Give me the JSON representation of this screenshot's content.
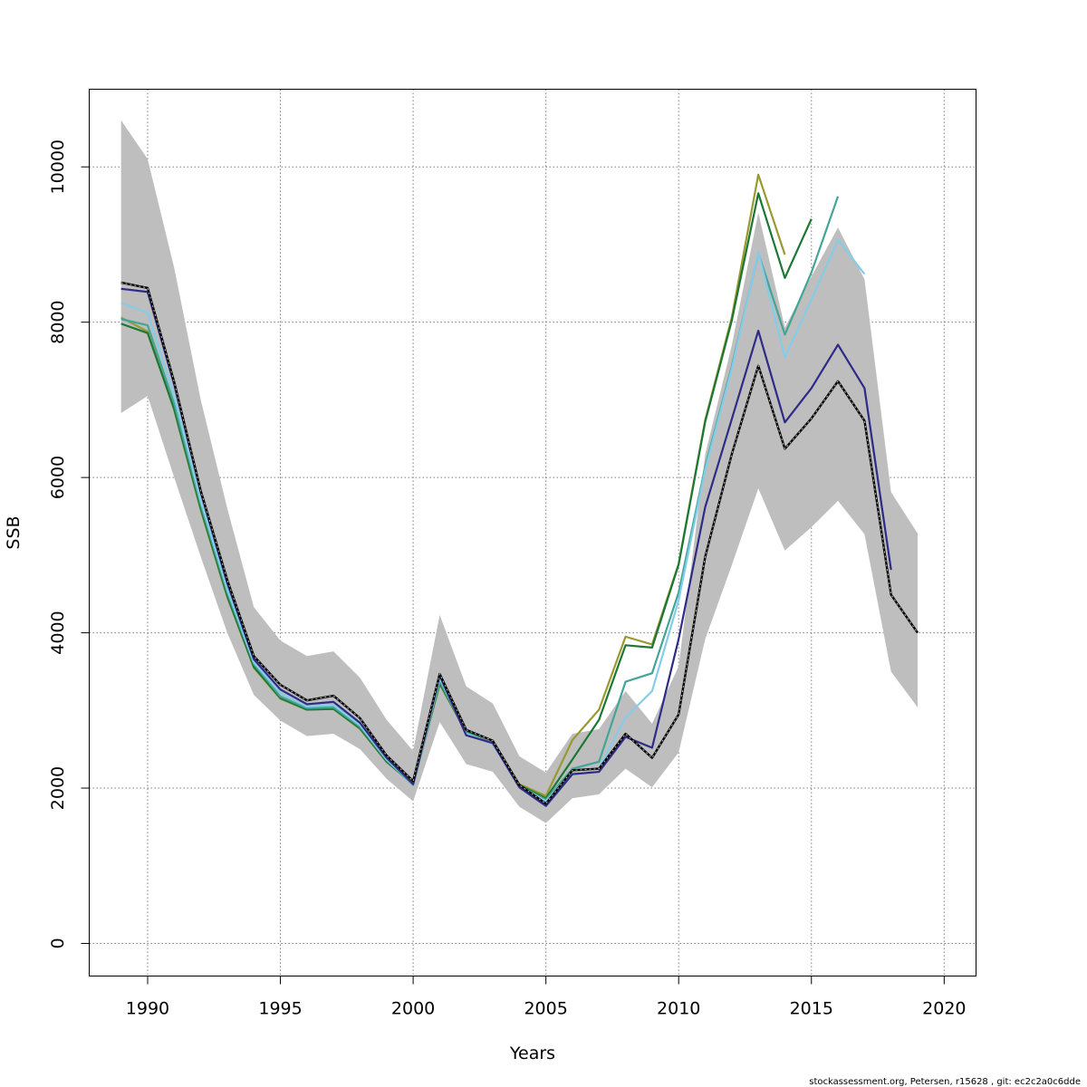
{
  "chart_data": {
    "type": "line",
    "xlabel": "Years",
    "ylabel": "SSB",
    "xlim": [
      1987.8,
      2021.2
    ],
    "ylim": [
      -420,
      11000
    ],
    "x_ticks": [
      1990,
      1995,
      2000,
      2005,
      2010,
      2015,
      2020
    ],
    "y_ticks": [
      0,
      2000,
      4000,
      6000,
      8000,
      10000
    ],
    "x_tick_labels": [
      "1990",
      "1995",
      "2000",
      "2005",
      "2010",
      "2015",
      "2020"
    ],
    "y_tick_labels": [
      "0",
      "2000",
      "4000",
      "6000",
      "8000",
      "10000"
    ],
    "grid": true,
    "confidence_band": {
      "x": [
        1989,
        1990,
        1991,
        1992,
        1993,
        1994,
        1995,
        1996,
        1997,
        1998,
        1999,
        2000,
        2001,
        2002,
        2003,
        2004,
        2005,
        2006,
        2007,
        2008,
        2009,
        2010,
        2011,
        2012,
        2013,
        2014,
        2015,
        2016,
        2017,
        2018,
        2019
      ],
      "upper": [
        10600,
        10100,
        8700,
        7000,
        5600,
        4330,
        3900,
        3700,
        3760,
        3420,
        2880,
        2480,
        4230,
        3310,
        3090,
        2410,
        2200,
        2700,
        2760,
        3250,
        2830,
        3570,
        6300,
        7700,
        9410,
        7930,
        8590,
        9220,
        8550,
        5810,
        5280
      ],
      "lower": [
        6830,
        7050,
        6000,
        4980,
        4000,
        3200,
        2870,
        2670,
        2700,
        2500,
        2120,
        1830,
        2850,
        2310,
        2210,
        1760,
        1550,
        1870,
        1920,
        2250,
        2010,
        2460,
        3920,
        4870,
        5860,
        5060,
        5360,
        5700,
        5270,
        3500,
        3040
      ],
      "color": "#bebebe"
    },
    "series": [
      {
        "color": "#000000",
        "dashed": true,
        "x": [
          1989,
          1990,
          1991,
          1992,
          1993,
          1994,
          1995,
          1996,
          1997,
          1998,
          1999,
          2000,
          2001,
          2002,
          2003,
          2004,
          2005,
          2006,
          2007,
          2008,
          2009,
          2010,
          2011,
          2012,
          2013,
          2014,
          2015,
          2016,
          2017,
          2018,
          2019
        ],
        "values": [
          8510,
          8440,
          7230,
          5830,
          4680,
          3700,
          3330,
          3130,
          3190,
          2900,
          2420,
          2090,
          3470,
          2750,
          2610,
          2040,
          1800,
          2230,
          2250,
          2700,
          2390,
          2950,
          4980,
          6300,
          7440,
          6370,
          6760,
          7240,
          6730,
          4490,
          4000
        ]
      },
      {
        "color": "#2e2b86",
        "dashed": false,
        "x": [
          1989,
          1990,
          1991,
          1992,
          1993,
          1994,
          1995,
          1996,
          1997,
          1998,
          1999,
          2000,
          2001,
          2002,
          2003,
          2004,
          2005,
          2006,
          2007,
          2008,
          2009,
          2010,
          2011,
          2012,
          2013,
          2014,
          2015,
          2016,
          2017,
          2018
        ],
        "values": [
          8430,
          8390,
          7200,
          5810,
          4640,
          3660,
          3270,
          3080,
          3110,
          2840,
          2390,
          2050,
          3450,
          2680,
          2580,
          2010,
          1770,
          2180,
          2210,
          2660,
          2520,
          3920,
          5620,
          6750,
          7890,
          6710,
          7150,
          7710,
          7150,
          4810
        ]
      },
      {
        "color": "#86cce8",
        "dashed": false,
        "x": [
          1989,
          1990,
          1991,
          1992,
          1993,
          1994,
          1995,
          1996,
          1997,
          1998,
          1999,
          2000,
          2001,
          2002,
          2003,
          2004,
          2005,
          2006,
          2007,
          2008,
          2009,
          2010,
          2011,
          2012,
          2013,
          2014,
          2015,
          2016,
          2017
        ],
        "values": [
          8250,
          8120,
          7050,
          5700,
          4560,
          3620,
          3220,
          3050,
          3070,
          2810,
          2370,
          2050,
          3420,
          2700,
          2570,
          2020,
          1830,
          2220,
          2260,
          2910,
          3250,
          4420,
          6100,
          7400,
          8900,
          7550,
          8290,
          9060,
          8620
        ]
      },
      {
        "color": "#43a596",
        "dashed": false,
        "x": [
          1989,
          1990,
          1991,
          1992,
          1993,
          1994,
          1995,
          1996,
          1997,
          1998,
          1999,
          2000,
          2001,
          2002,
          2003,
          2004,
          2005,
          2006,
          2007,
          2008,
          2009,
          2010,
          2011,
          2012,
          2013,
          2014,
          2015,
          2016
        ],
        "values": [
          8040,
          7960,
          6950,
          5650,
          4520,
          3600,
          3180,
          3030,
          3040,
          2790,
          2360,
          2040,
          3380,
          2710,
          2570,
          2030,
          1850,
          2250,
          2340,
          3370,
          3480,
          4520,
          6140,
          7430,
          8890,
          7840,
          8640,
          9620
        ]
      },
      {
        "color": "#1d7734",
        "dashed": false,
        "x": [
          1989,
          1990,
          1991,
          1992,
          1993,
          1994,
          1995,
          1996,
          1997,
          1998,
          1999,
          2000,
          2001,
          2002,
          2003,
          2004,
          2005,
          2006,
          2007,
          2008,
          2009,
          2010,
          2011,
          2012,
          2013,
          2014,
          2015
        ],
        "values": [
          7980,
          7860,
          6880,
          5600,
          4470,
          3560,
          3160,
          3010,
          3020,
          2770,
          2340,
          2050,
          3350,
          2720,
          2570,
          2040,
          1870,
          2370,
          2880,
          3840,
          3810,
          4880,
          6720,
          8020,
          9660,
          8570,
          9330
        ]
      },
      {
        "color": "#999933",
        "dashed": false,
        "x": [
          1989,
          1990,
          1991,
          1992,
          1993,
          1994,
          1995,
          1996,
          1997,
          1998,
          1999,
          2000,
          2001,
          2002,
          2003,
          2004,
          2005,
          2006,
          2007,
          2008,
          2009,
          2010,
          2011,
          2012,
          2013,
          2014
        ],
        "values": [
          8060,
          7880,
          6870,
          5580,
          4460,
          3550,
          3150,
          3010,
          3020,
          2760,
          2340,
          2060,
          3340,
          2720,
          2570,
          2050,
          1900,
          2620,
          3010,
          3950,
          3850,
          4890,
          6740,
          8060,
          9900,
          8870
        ]
      }
    ]
  },
  "footer": {
    "credit": "stockassessment.org, Petersen, r15628 , git: ec2c2a0c6dde"
  }
}
